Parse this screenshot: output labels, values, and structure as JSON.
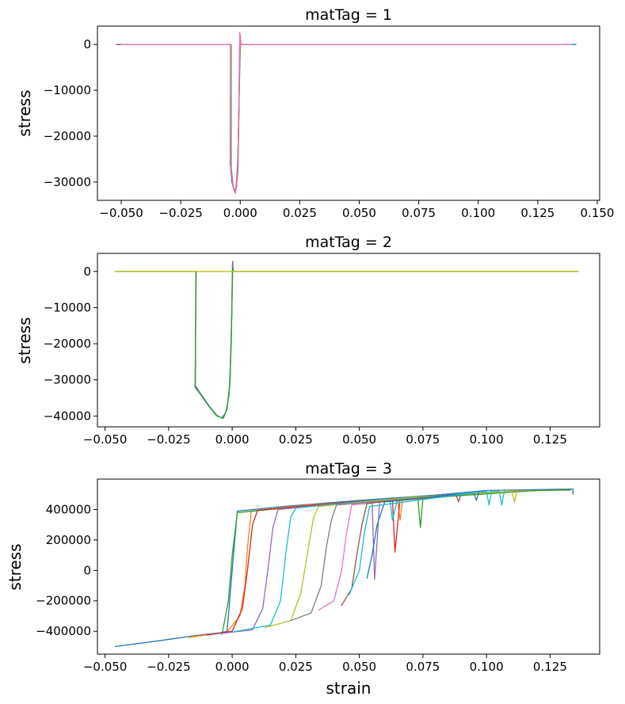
{
  "colors": [
    "#1f77b4",
    "#ff7f0e",
    "#2ca02c",
    "#d62728",
    "#9467bd",
    "#8c564b",
    "#e377c2",
    "#7f7f7f",
    "#bcbd22",
    "#17becf"
  ],
  "chart_data": [
    {
      "type": "line",
      "title": "matTag = 1",
      "ylabel": "stress",
      "xlabel": "",
      "xlim": [
        -0.06,
        0.151
      ],
      "ylim": [
        -34000,
        4000
      ],
      "xticks": [
        -0.05,
        -0.025,
        0.0,
        0.025,
        0.05,
        0.075,
        0.1,
        0.125,
        0.15
      ],
      "xtick_labels": [
        "−0.050",
        "−0.025",
        "0.000",
        "0.025",
        "0.050",
        "0.075",
        "0.100",
        "0.125",
        "0.150"
      ],
      "yticks": [
        -30000,
        -20000,
        -10000,
        0
      ],
      "ytick_labels": [
        "−30000",
        "−20000",
        "−10000",
        "0"
      ],
      "series": [
        {
          "color_index": 0,
          "points": [
            [
              -0.052,
              0
            ],
            [
              -0.004,
              0
            ],
            [
              -0.0042,
              -26000
            ],
            [
              -0.0035,
              -30000
            ],
            [
              -0.0025,
              -32000
            ],
            [
              -0.0015,
              -31000
            ],
            [
              -0.0008,
              -20000
            ],
            [
              -0.0004,
              -8000
            ],
            [
              -0.0002,
              2400
            ],
            [
              0.0,
              0
            ],
            [
              0.141,
              0
            ]
          ]
        },
        {
          "color_index": 1,
          "points": [
            [
              -0.051,
              0
            ],
            [
              -0.0039,
              0
            ],
            [
              -0.004,
              -26000
            ],
            [
              -0.003,
              -31000
            ],
            [
              -0.0022,
              -32200
            ],
            [
              -0.0012,
              -29000
            ],
            [
              -0.0006,
              -18000
            ],
            [
              -0.0002,
              2500
            ],
            [
              0.0002,
              0
            ],
            [
              0.139,
              0
            ]
          ]
        },
        {
          "color_index": 2,
          "points": [
            [
              -0.05,
              0
            ],
            [
              -0.0038,
              0
            ],
            [
              -0.0038,
              -27000
            ],
            [
              -0.0028,
              -31500
            ],
            [
              -0.002,
              -32300
            ],
            [
              -0.001,
              -28000
            ],
            [
              -0.0004,
              -10000
            ],
            [
              0.0,
              0
            ],
            [
              0.138,
              0
            ]
          ]
        },
        {
          "color_index": 3,
          "points": [
            [
              -0.051,
              0
            ],
            [
              -0.0041,
              0
            ],
            [
              -0.0041,
              -26500
            ],
            [
              -0.003,
              -31000
            ],
            [
              -0.002,
              -32400
            ],
            [
              -0.0011,
              -27000
            ],
            [
              -0.0005,
              -12000
            ],
            [
              -0.0001,
              2200
            ],
            [
              0.0003,
              0
            ],
            [
              0.137,
              0
            ]
          ]
        },
        {
          "color_index": 6,
          "points": [
            [
              -0.05,
              0
            ],
            [
              -0.004,
              0
            ],
            [
              -0.004,
              -26800
            ],
            [
              -0.0029,
              -31200
            ],
            [
              -0.0021,
              -32500
            ],
            [
              -0.0012,
              -29000
            ],
            [
              -0.0006,
              -15000
            ],
            [
              -0.0002,
              2600
            ],
            [
              0.0002,
              0
            ],
            [
              0.139,
              0
            ]
          ]
        }
      ]
    },
    {
      "type": "line",
      "title": "matTag = 2",
      "ylabel": "stress",
      "xlabel": "",
      "xlim": [
        -0.053,
        0.1445
      ],
      "ylim": [
        -43000,
        5000
      ],
      "xticks": [
        -0.05,
        -0.025,
        0.0,
        0.025,
        0.05,
        0.075,
        0.1,
        0.125
      ],
      "xtick_labels": [
        "−0.050",
        "−0.025",
        "0.000",
        "0.025",
        "0.050",
        "0.075",
        "0.100",
        "0.125"
      ],
      "yticks": [
        -40000,
        -30000,
        -20000,
        -10000,
        0
      ],
      "ytick_labels": [
        "−40000",
        "−30000",
        "−20000",
        "−10000",
        "0"
      ],
      "series": [
        {
          "color_index": 0,
          "points": [
            [
              -0.046,
              0
            ],
            [
              -0.0142,
              0
            ],
            [
              -0.0146,
              -32000
            ],
            [
              -0.012,
              -34500
            ],
            [
              -0.009,
              -37500
            ],
            [
              -0.006,
              -40000
            ],
            [
              -0.004,
              -40500
            ],
            [
              -0.0025,
              -39000
            ],
            [
              -0.0012,
              -34000
            ],
            [
              -0.0004,
              -20000
            ],
            [
              0.0,
              -5000
            ],
            [
              0.0002,
              2800
            ],
            [
              0.0004,
              0
            ],
            [
              0.136,
              0
            ]
          ]
        },
        {
          "color_index": 4,
          "points": [
            [
              -0.046,
              0
            ],
            [
              -0.0142,
              0
            ],
            [
              -0.0146,
              -31500
            ],
            [
              -0.012,
              -34200
            ],
            [
              -0.009,
              -37300
            ],
            [
              -0.006,
              -39800
            ],
            [
              -0.0038,
              -40700
            ],
            [
              -0.0022,
              -38500
            ],
            [
              -0.001,
              -32000
            ],
            [
              -0.0003,
              -15000
            ],
            [
              0.0001,
              2500
            ],
            [
              0.0004,
              0
            ],
            [
              0.136,
              0
            ]
          ]
        },
        {
          "color_index": 2,
          "points": [
            [
              -0.046,
              0
            ],
            [
              -0.0143,
              0
            ],
            [
              -0.0145,
              -32200
            ],
            [
              -0.0118,
              -34600
            ],
            [
              -0.0088,
              -37600
            ],
            [
              -0.0058,
              -40100
            ],
            [
              -0.0035,
              -40600
            ],
            [
              -0.002,
              -38000
            ],
            [
              -0.0008,
              -30000
            ],
            [
              -0.0001,
              -10000
            ],
            [
              0.0002,
              1000
            ],
            [
              0.0005,
              0
            ],
            [
              0.136,
              0
            ]
          ]
        },
        {
          "color_index": 8,
          "points": [
            [
              -0.046,
              0
            ],
            [
              0.136,
              0
            ]
          ]
        }
      ]
    },
    {
      "type": "line",
      "title": "matTag = 3",
      "ylabel": "stress",
      "xlabel": "strain",
      "xlim": [
        -0.053,
        0.1445
      ],
      "ylim": [
        -550000,
        600000
      ],
      "xticks": [
        -0.05,
        -0.025,
        0.0,
        0.025,
        0.05,
        0.075,
        0.1,
        0.125
      ],
      "xtick_labels": [
        "−0.050",
        "−0.025",
        "0.000",
        "0.025",
        "0.050",
        "0.075",
        "0.100",
        "0.125"
      ],
      "yticks": [
        -400000,
        -200000,
        0,
        200000,
        400000
      ],
      "ytick_labels": [
        "−400000",
        "−200000",
        "0",
        "200000",
        "400000"
      ],
      "series": [
        {
          "color_index": 0,
          "points": [
            [
              -0.046,
              -500000
            ],
            [
              -0.03,
              -465000
            ],
            [
              -0.015,
              -430000
            ],
            [
              -0.005,
              -410000
            ],
            [
              -0.002,
              -400000
            ],
            [
              -0.001,
              -200000
            ],
            [
              0.0005,
              100000
            ],
            [
              0.002,
              390000
            ],
            [
              0.02,
              420000
            ],
            [
              0.05,
              460000
            ],
            [
              0.08,
              495000
            ],
            [
              0.1,
              525000
            ],
            [
              0.134,
              535000
            ],
            [
              0.134,
              500000
            ]
          ]
        },
        {
          "color_index": 1,
          "points": [
            [
              -0.017,
              -440000
            ],
            [
              -0.002,
              -405000
            ],
            [
              0.003,
              -300000
            ],
            [
              0.005,
              -100000
            ],
            [
              0.006,
              150000
            ],
            [
              0.0075,
              390000
            ],
            [
              0.03,
              430000
            ],
            [
              0.065,
              470000
            ],
            [
              0.066,
              330000
            ],
            [
              0.067,
              460000
            ],
            [
              0.11,
              520000
            ],
            [
              0.132,
              530000
            ]
          ]
        },
        {
          "color_index": 2,
          "points": [
            [
              -0.004,
              -420000
            ],
            [
              -0.0015,
              -200000
            ],
            [
              0.0,
              100000
            ],
            [
              0.002,
              380000
            ],
            [
              0.04,
              440000
            ],
            [
              0.073,
              480000
            ],
            [
              0.074,
              280000
            ],
            [
              0.075,
              475000
            ],
            [
              0.12,
              525000
            ],
            [
              0.133,
              528000
            ]
          ]
        },
        {
          "color_index": 3,
          "points": [
            [
              -0.01,
              -425000
            ],
            [
              0.0,
              -400000
            ],
            [
              0.004,
              -250000
            ],
            [
              0.006,
              0
            ],
            [
              0.008,
              300000
            ],
            [
              0.01,
              395000
            ],
            [
              0.05,
              455000
            ],
            [
              0.063,
              470000
            ],
            [
              0.064,
              120000
            ],
            [
              0.066,
              465000
            ]
          ]
        },
        {
          "color_index": 4,
          "points": [
            [
              -0.005,
              -415000
            ],
            [
              0.008,
              -390000
            ],
            [
              0.012,
              -250000
            ],
            [
              0.014,
              0
            ],
            [
              0.016,
              280000
            ],
            [
              0.018,
              400000
            ],
            [
              0.055,
              460000
            ],
            [
              0.056,
              -60000
            ],
            [
              0.058,
              455000
            ],
            [
              0.09,
              500000
            ]
          ]
        },
        {
          "color_index": 9,
          "points": [
            [
              0.0,
              -405000
            ],
            [
              0.015,
              -360000
            ],
            [
              0.019,
              -200000
            ],
            [
              0.021,
              100000
            ],
            [
              0.023,
              350000
            ],
            [
              0.025,
              410000
            ],
            [
              0.062,
              470000
            ],
            [
              0.063,
              330000
            ],
            [
              0.065,
              468000
            ],
            [
              0.105,
              520000
            ],
            [
              0.106,
              430000
            ],
            [
              0.107,
              522000
            ]
          ]
        },
        {
          "color_index": 8,
          "points": [
            [
              0.013,
              -375000
            ],
            [
              0.023,
              -330000
            ],
            [
              0.027,
              -150000
            ],
            [
              0.03,
              150000
            ],
            [
              0.032,
              350000
            ],
            [
              0.034,
              420000
            ],
            [
              0.07,
              480000
            ],
            [
              0.11,
              520000
            ],
            [
              0.111,
              450000
            ],
            [
              0.112,
              522000
            ]
          ]
        },
        {
          "color_index": 7,
          "points": [
            [
              0.023,
              -330000
            ],
            [
              0.031,
              -280000
            ],
            [
              0.035,
              -100000
            ],
            [
              0.037,
              150000
            ],
            [
              0.039,
              330000
            ],
            [
              0.041,
              430000
            ],
            [
              0.08,
              485000
            ]
          ]
        },
        {
          "color_index": 6,
          "points": [
            [
              0.034,
              -260000
            ],
            [
              0.04,
              -200000
            ],
            [
              0.043,
              0
            ],
            [
              0.045,
              250000
            ],
            [
              0.047,
              430000
            ],
            [
              0.085,
              495000
            ]
          ]
        },
        {
          "color_index": 5,
          "points": [
            [
              0.043,
              -230000
            ],
            [
              0.047,
              -120000
            ],
            [
              0.049,
              100000
            ],
            [
              0.051,
              300000
            ],
            [
              0.053,
              440000
            ],
            [
              0.088,
              500000
            ],
            [
              0.089,
              450000
            ],
            [
              0.09,
              502000
            ]
          ]
        },
        {
          "color_index": 0,
          "points": [
            [
              0.053,
              -50000
            ],
            [
              0.055,
              100000
            ],
            [
              0.057,
              300000
            ],
            [
              0.06,
              450000
            ],
            [
              0.095,
              510000
            ],
            [
              0.096,
              460000
            ],
            [
              0.097,
              512000
            ]
          ]
        },
        {
          "color_index": 9,
          "points": [
            [
              0.046,
              -160000
            ],
            [
              0.05,
              0
            ],
            [
              0.052,
              250000
            ],
            [
              0.054,
              420000
            ],
            [
              0.1,
              520000
            ],
            [
              0.101,
              430000
            ],
            [
              0.102,
              522000
            ]
          ]
        }
      ]
    }
  ]
}
